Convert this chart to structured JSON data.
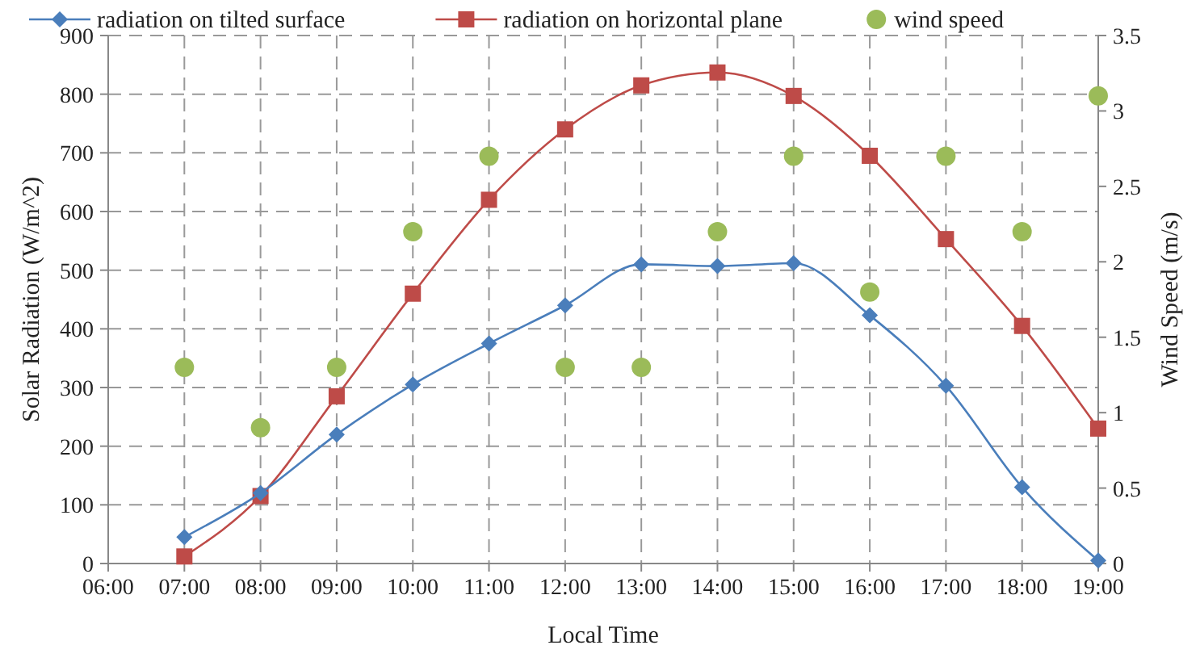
{
  "chart_data": {
    "type": "line",
    "xlabel": "Local Time",
    "ylabel": "Solar Radiation (W/m^2)",
    "y2label": "Wind Speed (m/s)",
    "x": [
      7,
      8,
      9,
      10,
      11,
      12,
      13,
      14,
      15,
      16,
      17,
      18,
      19
    ],
    "series": [
      {
        "name": "radiation on tilted surface",
        "color": "#4a7ebb",
        "marker": "diamond",
        "values": [
          45,
          120,
          220,
          305,
          375,
          440,
          510,
          507,
          512,
          423,
          303,
          130,
          5
        ]
      },
      {
        "name": "radiation on horizontal plane",
        "color": "#be4b48",
        "marker": "square",
        "values": [
          12,
          115,
          285,
          460,
          620,
          740,
          815,
          837,
          797,
          695,
          553,
          405,
          230
        ]
      },
      {
        "name": "wind speed",
        "type": "scatter",
        "axis": "y2",
        "color": "#9bbb59",
        "marker": "circle",
        "values": [
          1.3,
          0.9,
          1.3,
          2.2,
          2.7,
          1.3,
          1.3,
          2.2,
          2.7,
          1.8,
          2.7,
          2.2,
          3.1
        ]
      }
    ],
    "xlim": [
      6,
      19
    ],
    "xticks": [
      {
        "value": 6,
        "label": "06:00"
      },
      {
        "value": 7,
        "label": "07:00"
      },
      {
        "value": 8,
        "label": "08:00"
      },
      {
        "value": 9,
        "label": "09:00"
      },
      {
        "value": 10,
        "label": "10:00"
      },
      {
        "value": 11,
        "label": "11:00"
      },
      {
        "value": 12,
        "label": "12:00"
      },
      {
        "value": 13,
        "label": "13:00"
      },
      {
        "value": 14,
        "label": "14:00"
      },
      {
        "value": 15,
        "label": "15:00"
      },
      {
        "value": 16,
        "label": "16:00"
      },
      {
        "value": 17,
        "label": "17:00"
      },
      {
        "value": 18,
        "label": "18:00"
      },
      {
        "value": 19,
        "label": "19:00"
      }
    ],
    "ylim": [
      0,
      900
    ],
    "yticks": [
      0,
      100,
      200,
      300,
      400,
      500,
      600,
      700,
      800,
      900
    ],
    "y2lim": [
      0,
      3.5
    ],
    "y2ticks": [
      0,
      0.5,
      1,
      1.5,
      2,
      2.5,
      3,
      3.5
    ],
    "grid": true,
    "legend": "top"
  }
}
